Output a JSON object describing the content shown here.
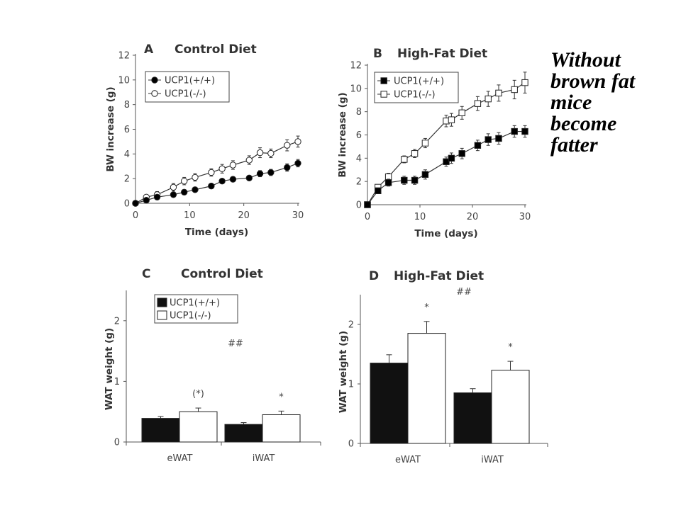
{
  "caption": {
    "lines": [
      "Without",
      "brown fat",
      "mice",
      "become",
      "fatter"
    ]
  },
  "chart_data": [
    {
      "id": "A",
      "type": "line",
      "letter": "A",
      "title": "Control Diet",
      "xlabel": "Time (days)",
      "ylabel": "BW increase (g)",
      "xlim": [
        0,
        30
      ],
      "ylim": [
        0,
        12
      ],
      "xticks": [
        0,
        10,
        20,
        30
      ],
      "yticks": [
        0,
        2,
        4,
        6,
        8,
        10,
        12
      ],
      "legend_position": "top-left",
      "grid": false,
      "marker_shape": "circle",
      "series": [
        {
          "name": "UCP1(+/+)",
          "fill": "#000000",
          "x": [
            0,
            2,
            4,
            7,
            9,
            11,
            14,
            16,
            18,
            21,
            23,
            25,
            28,
            30
          ],
          "y": [
            0,
            0.25,
            0.5,
            0.7,
            0.9,
            1.1,
            1.4,
            1.8,
            1.95,
            2.05,
            2.4,
            2.5,
            2.9,
            3.25
          ],
          "err": [
            0.05,
            0.1,
            0.15,
            0.2,
            0.2,
            0.2,
            0.2,
            0.2,
            0.2,
            0.2,
            0.25,
            0.25,
            0.3,
            0.3
          ]
        },
        {
          "name": "UCP1(-/-)",
          "fill": "#ffffff",
          "x": [
            0,
            2,
            4,
            7,
            9,
            11,
            14,
            16,
            18,
            21,
            23,
            25,
            28,
            30
          ],
          "y": [
            0,
            0.5,
            0.7,
            1.3,
            1.8,
            2.1,
            2.5,
            2.8,
            3.1,
            3.5,
            4.1,
            4.05,
            4.7,
            5.0
          ],
          "err": [
            0.1,
            0.2,
            0.25,
            0.3,
            0.3,
            0.3,
            0.3,
            0.35,
            0.35,
            0.35,
            0.4,
            0.35,
            0.45,
            0.45
          ]
        }
      ]
    },
    {
      "id": "B",
      "type": "line",
      "letter": "B",
      "title": "High-Fat Diet",
      "xlabel": "Time (days)",
      "ylabel": "BW increase (g)",
      "xlim": [
        0,
        30
      ],
      "ylim": [
        0,
        12
      ],
      "xticks": [
        0,
        10,
        20,
        30
      ],
      "yticks": [
        0,
        2,
        4,
        6,
        8,
        10,
        12
      ],
      "legend_position": "top-left",
      "grid": false,
      "marker_shape": "square",
      "series": [
        {
          "name": "UCP1(+/+)",
          "fill": "#000000",
          "x": [
            0,
            2,
            4,
            7,
            9,
            11,
            15,
            16,
            18,
            21,
            23,
            25,
            28,
            30
          ],
          "y": [
            0,
            1.2,
            1.9,
            2.1,
            2.1,
            2.6,
            3.7,
            4.0,
            4.4,
            5.1,
            5.6,
            5.7,
            6.3,
            6.3
          ],
          "err": [
            0.1,
            0.2,
            0.3,
            0.35,
            0.35,
            0.4,
            0.4,
            0.45,
            0.45,
            0.45,
            0.5,
            0.5,
            0.5,
            0.5
          ]
        },
        {
          "name": "UCP1(-/-)",
          "fill": "#ffffff",
          "x": [
            0,
            2,
            4,
            7,
            9,
            11,
            15,
            16,
            18,
            21,
            23,
            25,
            28,
            30
          ],
          "y": [
            0,
            1.5,
            2.4,
            3.9,
            4.4,
            5.3,
            7.2,
            7.3,
            7.9,
            8.7,
            9.1,
            9.6,
            9.9,
            10.5
          ],
          "err": [
            0.1,
            0.2,
            0.3,
            0.3,
            0.35,
            0.4,
            0.5,
            0.55,
            0.55,
            0.6,
            0.65,
            0.7,
            0.8,
            0.9
          ]
        }
      ]
    },
    {
      "id": "C",
      "type": "bar",
      "letter": "C",
      "title": "Control Diet",
      "ylabel": "WAT weight (g)",
      "categories": [
        "eWAT",
        "iWAT"
      ],
      "ylim": [
        0,
        2.5
      ],
      "yticks": [
        0,
        1,
        2
      ],
      "legend_position": "top-left",
      "grid": false,
      "series": [
        {
          "name": "UCP1(+/+)",
          "fill": "#111111",
          "values": [
            0.39,
            0.29
          ],
          "err": [
            0.03,
            0.03
          ]
        },
        {
          "name": "UCP1(-/-)",
          "fill": "#ffffff",
          "values": [
            0.5,
            0.45
          ],
          "err": [
            0.06,
            0.06
          ]
        }
      ],
      "annotations": [
        {
          "text": "(*)",
          "category": 0,
          "series": 1
        },
        {
          "text": "*",
          "category": 1,
          "series": 1
        },
        {
          "text": "##",
          "category": 0.5,
          "value": 1.58
        }
      ]
    },
    {
      "id": "D",
      "type": "bar",
      "letter": "D",
      "title": "High-Fat Diet",
      "ylabel": "WAT weight (g)",
      "categories": [
        "eWAT",
        "iWAT"
      ],
      "ylim": [
        0,
        2.5
      ],
      "yticks": [
        0,
        1,
        2
      ],
      "legend_position": "none",
      "grid": false,
      "series": [
        {
          "name": "UCP1(+/+)",
          "fill": "#111111",
          "values": [
            1.35,
            0.85
          ],
          "err": [
            0.14,
            0.07
          ]
        },
        {
          "name": "UCP1(-/-)",
          "fill": "#ffffff",
          "values": [
            1.85,
            1.23
          ],
          "err": [
            0.2,
            0.15
          ]
        }
      ],
      "annotations": [
        {
          "text": "*",
          "category": 0,
          "series": 1
        },
        {
          "text": "*",
          "category": 1,
          "series": 1
        },
        {
          "text": "##",
          "category": 0.5,
          "value": 2.5
        }
      ]
    }
  ]
}
